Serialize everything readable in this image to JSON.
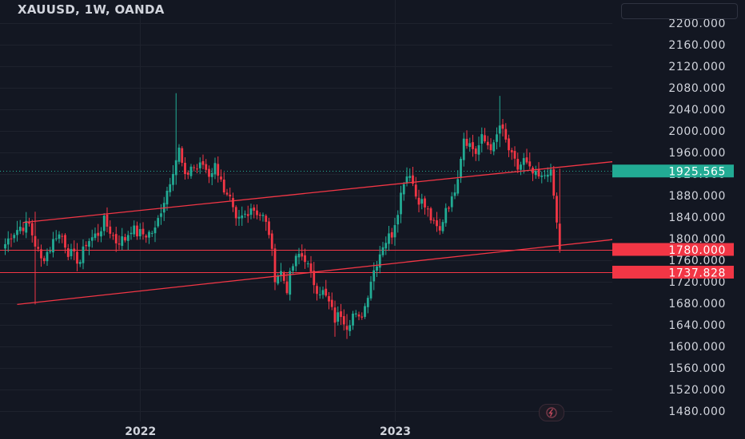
{
  "header": {
    "title": "XAUUSD, 1W, OANDA"
  },
  "colors": {
    "background": "#131722",
    "up": "#22ab94",
    "down": "#f23645",
    "grid": "#1e222d",
    "axis_text": "#d1d4dc",
    "badge_current": "#22ab94",
    "badge_level": "#f23645"
  },
  "chart_data": {
    "type": "candlestick",
    "symbol": "XAUUSD",
    "interval": "1W",
    "source": "OANDA",
    "ylim": [
      1460,
      2210
    ],
    "y_ticks": [
      "2200.000",
      "2160.000",
      "2120.000",
      "2080.000",
      "2040.000",
      "2000.000",
      "1960.000",
      "1920.000",
      "1880.000",
      "1840.000",
      "1800.000",
      "1760.000",
      "1720.000",
      "1680.000",
      "1640.000",
      "1600.000",
      "1560.000",
      "1520.000",
      "1480.000"
    ],
    "x_ticks": [
      {
        "label": "2022",
        "index": 45
      },
      {
        "label": "2023",
        "index": 130
      }
    ],
    "current_price": {
      "value": 1925.565,
      "label": "1925.565"
    },
    "levels": [
      {
        "value": 1780.0,
        "label": "1780.000"
      },
      {
        "value": 1737.828,
        "label": "1737.828"
      }
    ],
    "trendlines": [
      {
        "from": {
          "index": 6,
          "price": 1830
        },
        "to": {
          "index": 189,
          "price": 1935
        }
      },
      {
        "from": {
          "index": 4,
          "price": 1678
        },
        "to": {
          "index": 189,
          "price": 1790
        }
      }
    ],
    "close_waypoints": [
      [
        0,
        1790
      ],
      [
        2,
        1808
      ],
      [
        5,
        1822
      ],
      [
        8,
        1826
      ],
      [
        10,
        1790
      ],
      [
        12,
        1760
      ],
      [
        15,
        1783
      ],
      [
        17,
        1808
      ],
      [
        19,
        1805
      ],
      [
        21,
        1776
      ],
      [
        23,
        1766
      ],
      [
        25,
        1758
      ],
      [
        27,
        1793
      ],
      [
        31,
        1810
      ],
      [
        33,
        1832
      ],
      [
        35,
        1815
      ],
      [
        37,
        1795
      ],
      [
        40,
        1800
      ],
      [
        42,
        1820
      ],
      [
        44,
        1810
      ],
      [
        47,
        1808
      ],
      [
        50,
        1815
      ],
      [
        52,
        1855
      ],
      [
        54,
        1890
      ],
      [
        56,
        1930
      ],
      [
        58,
        1965
      ],
      [
        60,
        1910
      ],
      [
        62,
        1935
      ],
      [
        64,
        1930
      ],
      [
        66,
        1938
      ],
      [
        68,
        1920
      ],
      [
        70,
        1935
      ],
      [
        72,
        1915
      ],
      [
        73,
        1880
      ],
      [
        75,
        1868
      ],
      [
        77,
        1830
      ],
      [
        80,
        1845
      ],
      [
        82,
        1860
      ],
      [
        84,
        1850
      ],
      [
        86,
        1840
      ],
      [
        88,
        1812
      ],
      [
        90,
        1730
      ],
      [
        92,
        1738
      ],
      [
        94,
        1708
      ],
      [
        96,
        1750
      ],
      [
        98,
        1770
      ],
      [
        100,
        1765
      ],
      [
        102,
        1730
      ],
      [
        104,
        1708
      ],
      [
        106,
        1700
      ],
      [
        108,
        1680
      ],
      [
        110,
        1650
      ],
      [
        112,
        1662
      ],
      [
        114,
        1640
      ],
      [
        116,
        1660
      ],
      [
        118,
        1648
      ],
      [
        120,
        1675
      ],
      [
        122,
        1725
      ],
      [
        124,
        1758
      ],
      [
        126,
        1790
      ],
      [
        129,
        1810
      ],
      [
        131,
        1855
      ],
      [
        133,
        1910
      ],
      [
        135,
        1925
      ],
      [
        137,
        1880
      ],
      [
        139,
        1868
      ],
      [
        141,
        1850
      ],
      [
        143,
        1825
      ],
      [
        145,
        1812
      ],
      [
        147,
        1860
      ],
      [
        149,
        1870
      ],
      [
        151,
        1920
      ],
      [
        153,
        1990
      ],
      [
        155,
        1975
      ],
      [
        157,
        1960
      ],
      [
        159,
        1985
      ],
      [
        161,
        1975
      ],
      [
        163,
        1970
      ],
      [
        165,
        2010
      ],
      [
        167,
        1980
      ],
      [
        169,
        1950
      ],
      [
        171,
        1930
      ],
      [
        173,
        1945
      ],
      [
        175,
        1925
      ],
      [
        177,
        1915
      ],
      [
        179,
        1910
      ],
      [
        181,
        1928
      ],
      [
        182,
        1918
      ],
      [
        183,
        1880
      ],
      [
        184,
        1830
      ],
      [
        185,
        1780
      ]
    ]
  }
}
